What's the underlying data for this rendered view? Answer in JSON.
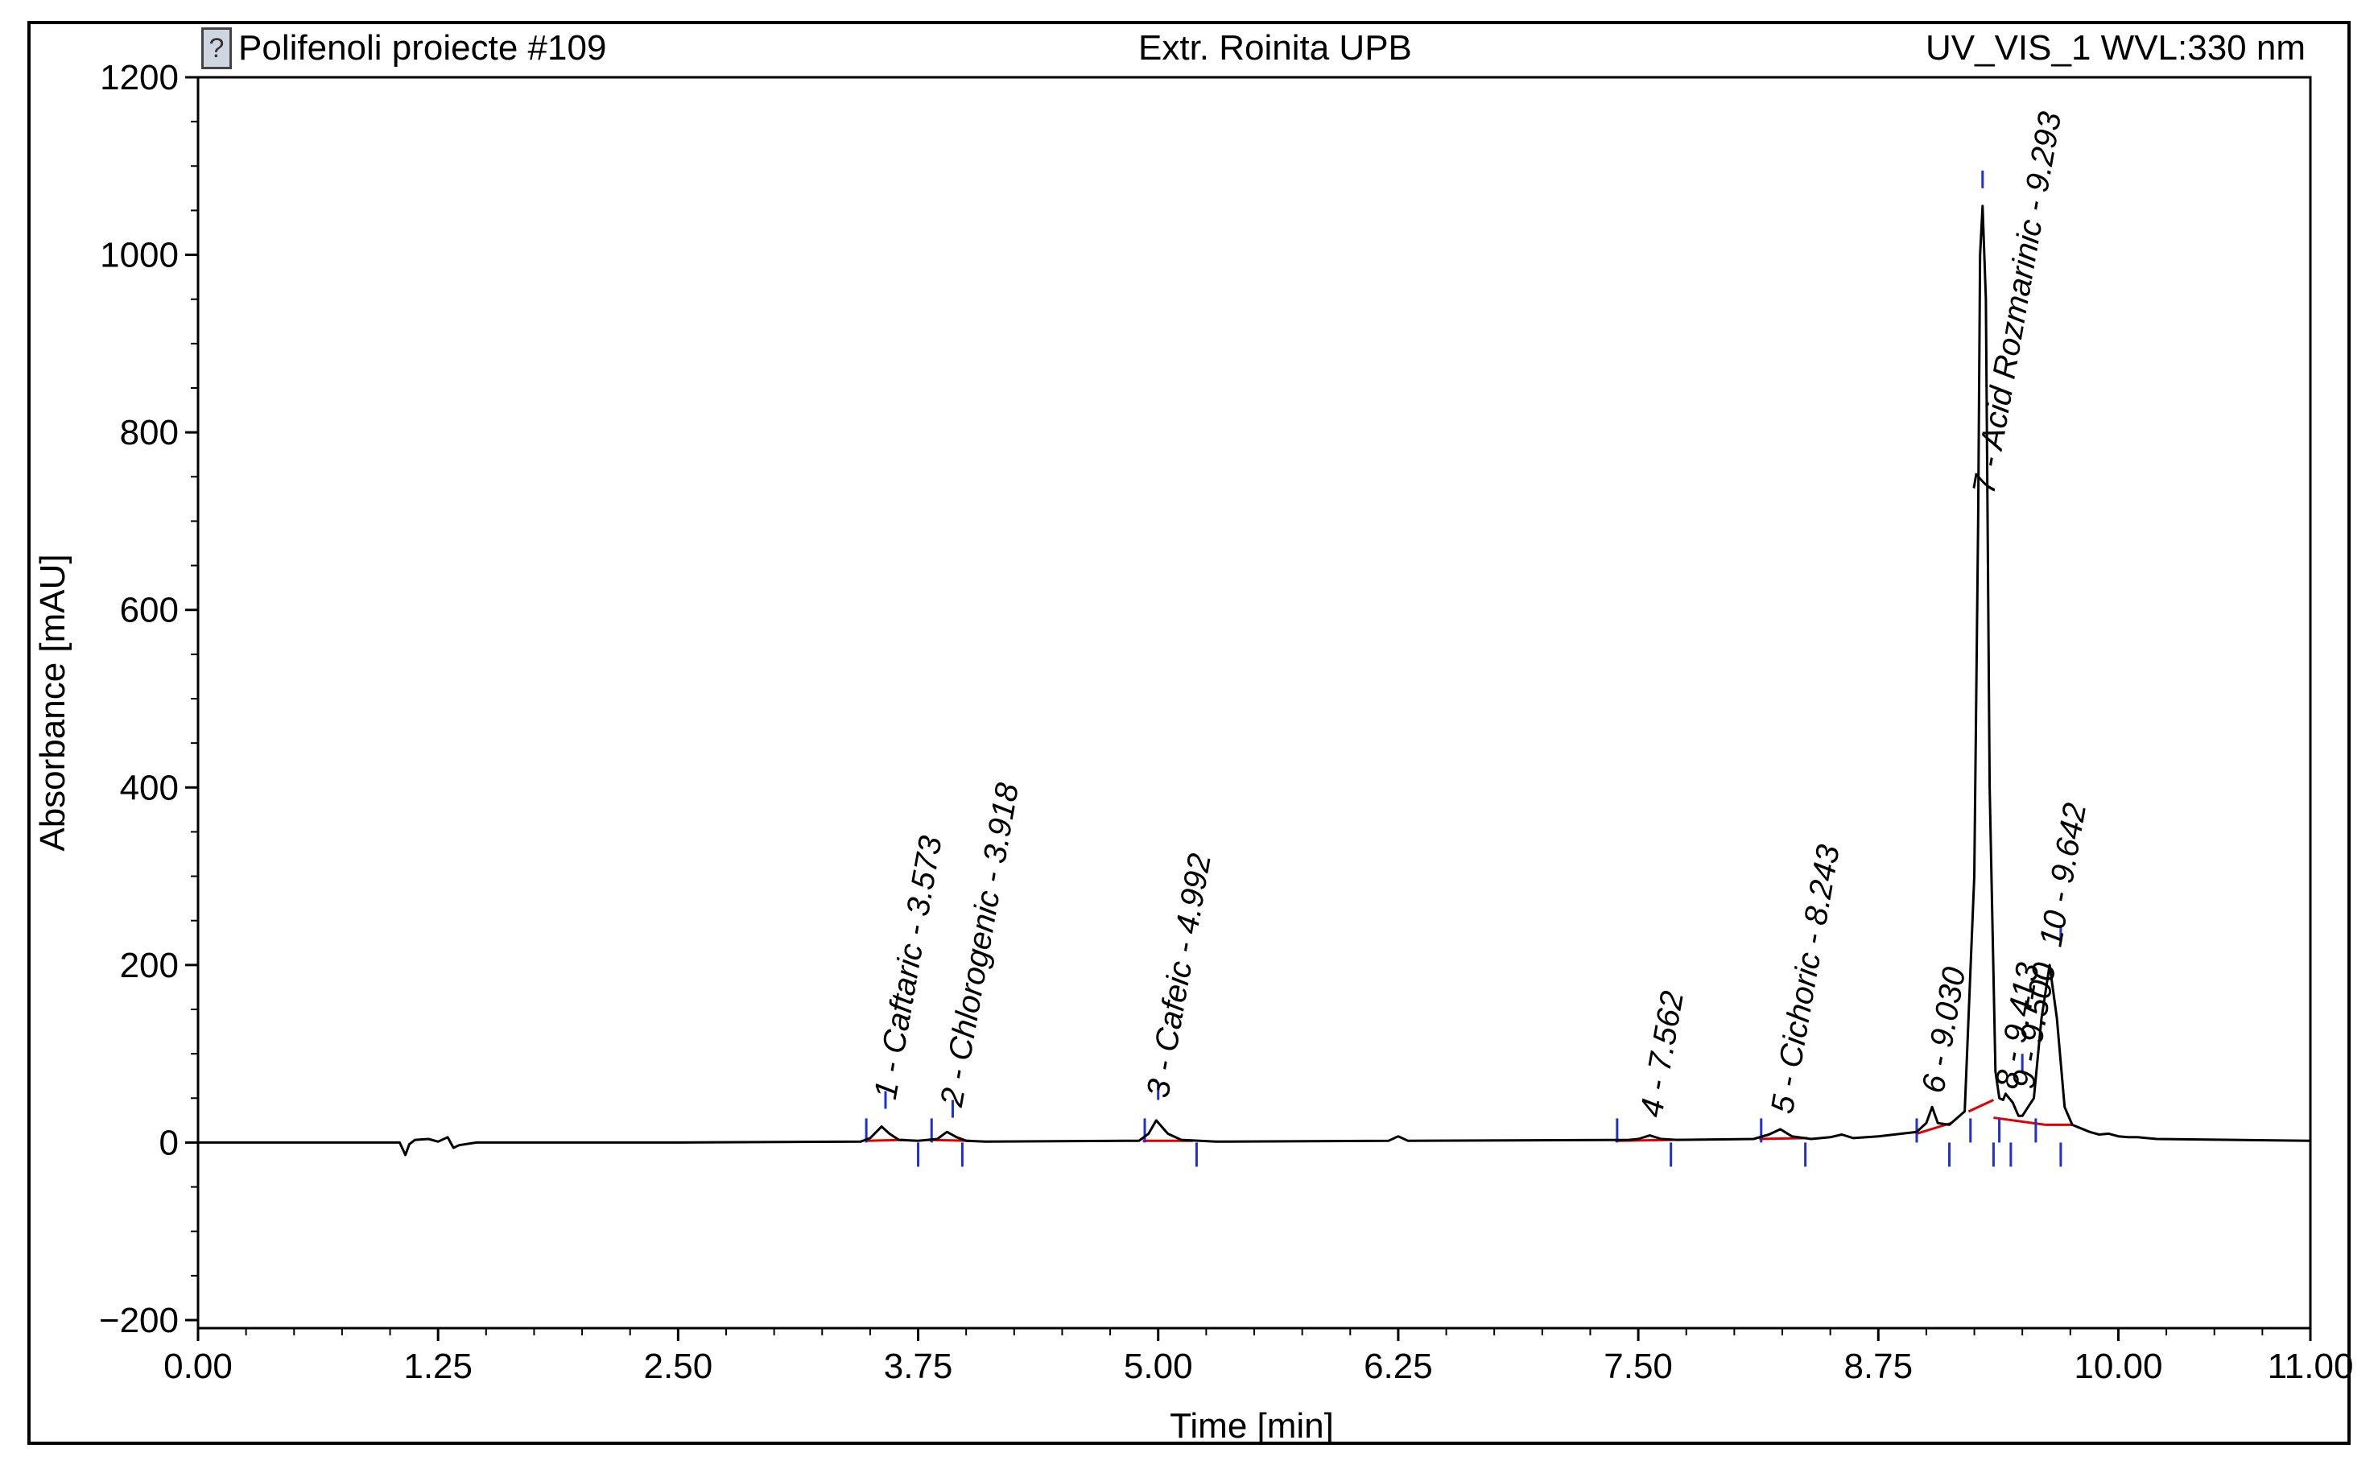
{
  "header": {
    "left": "Polifenoli proiecte #109",
    "center": "Extr. Roinita UPB",
    "right": "UV_VIS_1 WVL:330 nm",
    "icon": "document-help-icon"
  },
  "chart_data": {
    "type": "line",
    "title": "Extr. Roinita UPB",
    "xlabel": "Time [min]",
    "ylabel": "Absorbance [mAU]",
    "xlim": [
      0,
      11
    ],
    "ylim": [
      -200,
      1200
    ],
    "xticks": [
      "0.00",
      "1.25",
      "2.50",
      "3.75",
      "5.00",
      "6.25",
      "7.50",
      "8.75",
      "10.00",
      "11.00"
    ],
    "xtick_values": [
      0,
      1.25,
      2.5,
      3.75,
      5.0,
      6.25,
      7.5,
      8.75,
      10.0,
      11.0
    ],
    "yticks": [
      "1200",
      "1000",
      "800",
      "600",
      "400",
      "200",
      "0",
      "−200"
    ],
    "ytick_values": [
      1200,
      1000,
      800,
      600,
      400,
      200,
      0,
      -200
    ],
    "grid": false,
    "line_color": "#000000",
    "baseline_color": "#e00000",
    "marker_color": "#1f2fd8",
    "series": [
      {
        "x": [
          0,
          1.05,
          1.08,
          1.1,
          1.13,
          1.2,
          1.25,
          1.3,
          1.33,
          1.36,
          1.45,
          2.5,
          3.45,
          3.5,
          3.56,
          3.6,
          3.65,
          3.75,
          3.85,
          3.9,
          3.95,
          4.0,
          4.1,
          4.9,
          4.95,
          4.99,
          5.05,
          5.12,
          5.3,
          6.2,
          6.25,
          6.3,
          7.45,
          7.5,
          7.56,
          7.62,
          7.7,
          8.1,
          8.18,
          8.24,
          8.3,
          8.4,
          8.5,
          8.56,
          8.62,
          8.75,
          8.95,
          9.0,
          9.03,
          9.06,
          9.12,
          9.2,
          9.25,
          9.27,
          9.28,
          9.293,
          9.31,
          9.33,
          9.36,
          9.38,
          9.4,
          9.413,
          9.45,
          9.48,
          9.5,
          9.53,
          9.56,
          9.6,
          9.642,
          9.68,
          9.72,
          9.76,
          9.85,
          9.9,
          9.95,
          10.0,
          10.05,
          10.1,
          10.2,
          11.0
        ],
        "y": [
          0,
          0,
          -14,
          -2,
          3,
          4,
          1,
          6,
          -6,
          -3,
          0,
          0,
          1,
          5,
          18,
          10,
          3,
          2,
          4,
          12,
          6,
          2,
          1,
          2,
          10,
          25,
          10,
          3,
          1,
          2,
          7,
          2,
          3,
          4,
          8,
          4,
          3,
          4,
          9,
          15,
          7,
          4,
          6,
          9,
          5,
          7,
          12,
          22,
          40,
          22,
          20,
          35,
          300,
          700,
          1000,
          1055,
          950,
          400,
          80,
          50,
          48,
          55,
          45,
          30,
          30,
          40,
          50,
          140,
          200,
          140,
          40,
          20,
          12,
          9,
          10,
          7,
          6,
          6,
          4,
          2
        ]
      }
    ],
    "baselines": [
      [
        [
          3.48,
          2
        ],
        [
          3.68,
          3
        ]
      ],
      [
        [
          3.8,
          3
        ],
        [
          4.02,
          2
        ]
      ],
      [
        [
          4.92,
          2
        ],
        [
          5.18,
          2
        ]
      ],
      [
        [
          7.38,
          2
        ],
        [
          7.68,
          3
        ]
      ],
      [
        [
          8.13,
          4
        ],
        [
          8.38,
          5
        ]
      ],
      [
        [
          8.95,
          10
        ],
        [
          9.13,
          22
        ]
      ],
      [
        [
          9.22,
          35
        ],
        [
          9.35,
          48
        ]
      ],
      [
        [
          9.35,
          28
        ],
        [
          9.62,
          20
        ]
      ],
      [
        [
          9.62,
          20
        ],
        [
          9.76,
          20
        ]
      ]
    ],
    "marker_ticks": [
      {
        "x": 3.48,
        "side": "up"
      },
      {
        "x": 3.75,
        "side": "down"
      },
      {
        "x": 3.82,
        "side": "up"
      },
      {
        "x": 3.98,
        "side": "down"
      },
      {
        "x": 4.93,
        "side": "up"
      },
      {
        "x": 5.2,
        "side": "down"
      },
      {
        "x": 7.39,
        "side": "up"
      },
      {
        "x": 7.67,
        "side": "down"
      },
      {
        "x": 8.14,
        "side": "up"
      },
      {
        "x": 8.37,
        "side": "down"
      },
      {
        "x": 8.95,
        "side": "up"
      },
      {
        "x": 9.12,
        "side": "down"
      },
      {
        "x": 9.23,
        "side": "up"
      },
      {
        "x": 9.35,
        "side": "down"
      },
      {
        "x": 9.38,
        "side": "up"
      },
      {
        "x": 9.44,
        "side": "down"
      },
      {
        "x": 9.57,
        "side": "up"
      },
      {
        "x": 9.7,
        "side": "down"
      }
    ],
    "peak_top_ticks": [
      {
        "x": 3.58,
        "y": 38
      },
      {
        "x": 3.93,
        "y": 28
      },
      {
        "x": 5.0,
        "y": 48
      },
      {
        "x": 9.293,
        "y": 1075
      },
      {
        "x": 9.5,
        "y": 80
      },
      {
        "x": 9.7,
        "y": 225
      }
    ],
    "peaks": [
      {
        "label": "1 - Caftaric - 3.573",
        "x": 3.573,
        "y": 38
      },
      {
        "label": "2 - Chlorogenic - 3.918",
        "x": 3.918,
        "y": 30
      },
      {
        "label": "3 - Cafeic - 4.992",
        "x": 4.992,
        "y": 40
      },
      {
        "label": "4 - 7.562",
        "x": 7.562,
        "y": 18
      },
      {
        "label": "5 - Cichoric - 8.243",
        "x": 8.243,
        "y": 22
      },
      {
        "label": "6 - 9.030",
        "x": 9.03,
        "y": 45
      },
      {
        "label": "7 - Acid Rozmarinic - 9.293",
        "x": 9.293,
        "y": 720
      },
      {
        "label": "8 - 9.413",
        "x": 9.413,
        "y": 50
      },
      {
        "label": "9 - 9.500",
        "x": 9.5,
        "y": 50
      },
      {
        "label": "10 - 9.642",
        "x": 9.642,
        "y": 210
      }
    ]
  }
}
